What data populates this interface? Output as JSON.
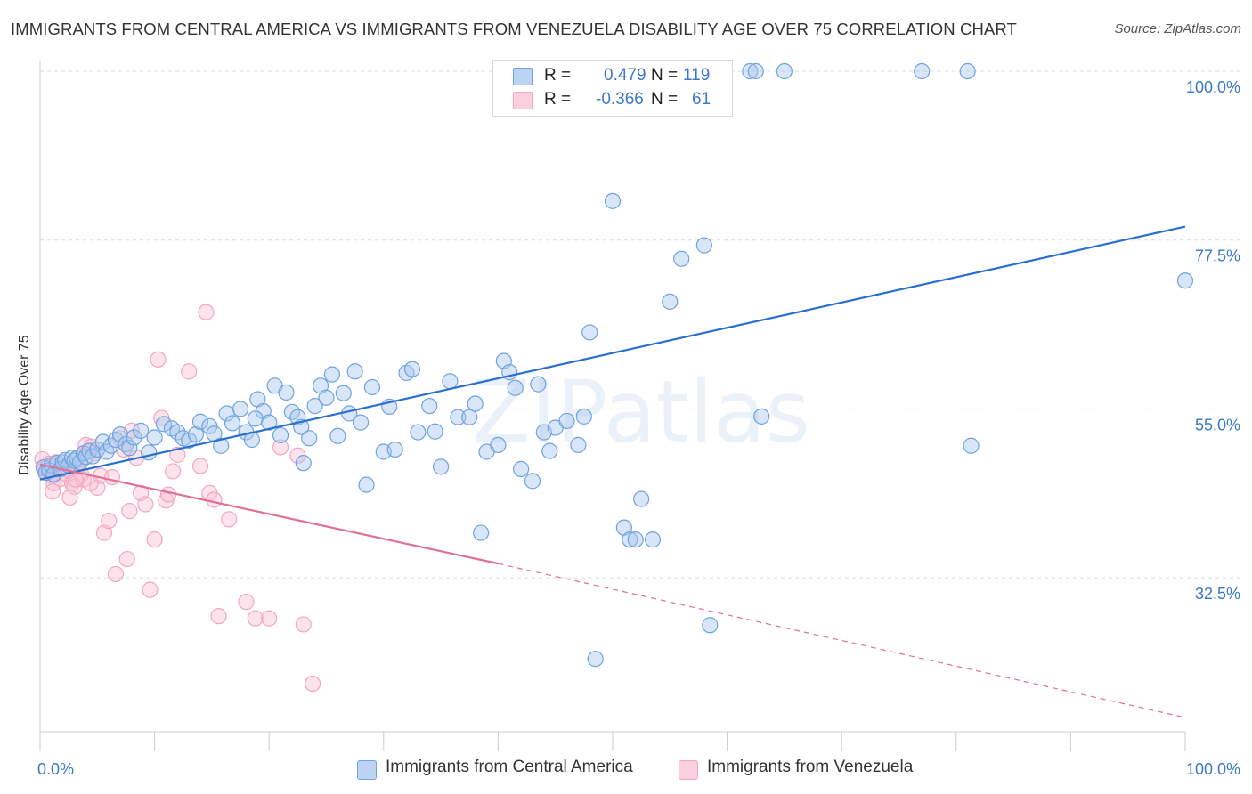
{
  "title": "IMMIGRANTS FROM CENTRAL AMERICA VS IMMIGRANTS FROM VENEZUELA DISABILITY AGE OVER 75 CORRELATION CHART",
  "source": "Source: ZipAtlas.com",
  "watermark": "ZIPatlas",
  "legend": {
    "r_label": "R =",
    "n_label": "N =",
    "rows": [
      {
        "r": "0.479",
        "n": "119"
      },
      {
        "r": "-0.366",
        "n": "61"
      }
    ]
  },
  "chart_data": {
    "type": "scatter",
    "title": "IMMIGRANTS FROM CENTRAL AMERICA VS IMMIGRANTS FROM VENEZUELA DISABILITY AGE OVER 75 CORRELATION CHART",
    "xlabel": "",
    "ylabel": "Disability Age Over 75",
    "xlim": [
      0,
      100
    ],
    "ylim": [
      12,
      100
    ],
    "x_tick_labels": [
      "0.0%",
      "100.0%"
    ],
    "y_ticks": [
      32.5,
      55.0,
      77.5,
      100.0
    ],
    "y_tick_labels": [
      "32.5%",
      "55.0%",
      "77.5%",
      "100.0%"
    ],
    "grid": true,
    "legend_position": "top-center",
    "colors": {
      "central_america": "#6fa3e0",
      "venezuela": "#f4a6c0",
      "blue_line": "#2a6fcf",
      "pink_line": "#e07098"
    },
    "series": [
      {
        "name": "Immigrants from Central America",
        "color": "#6fa3e0",
        "trendline": {
          "x": [
            0,
            100
          ],
          "y": [
            45.6,
            79.3
          ]
        },
        "points": [
          [
            0.3,
            47.2
          ],
          [
            0.5,
            46.5
          ],
          [
            0.8,
            46.8
          ],
          [
            1.0,
            47.5
          ],
          [
            1.2,
            46.3
          ],
          [
            1.5,
            47.8
          ],
          [
            1.8,
            47.0
          ],
          [
            2.0,
            47.9
          ],
          [
            2.2,
            48.2
          ],
          [
            2.5,
            47.5
          ],
          [
            2.8,
            48.5
          ],
          [
            3.0,
            48.1
          ],
          [
            3.2,
            48.4
          ],
          [
            3.5,
            47.9
          ],
          [
            3.8,
            49.1
          ],
          [
            4.0,
            48.6
          ],
          [
            4.3,
            49.4
          ],
          [
            4.6,
            48.7
          ],
          [
            5.0,
            49.6
          ],
          [
            5.5,
            50.6
          ],
          [
            5.8,
            49.3
          ],
          [
            6.2,
            50.1
          ],
          [
            6.6,
            50.9
          ],
          [
            7.0,
            51.6
          ],
          [
            7.5,
            50.3
          ],
          [
            7.8,
            49.8
          ],
          [
            8.2,
            51.2
          ],
          [
            8.8,
            52.1
          ],
          [
            9.5,
            49.2
          ],
          [
            10.0,
            51.2
          ],
          [
            10.8,
            53.0
          ],
          [
            11.5,
            52.4
          ],
          [
            12.0,
            51.9
          ],
          [
            12.5,
            51.1
          ],
          [
            13.0,
            50.8
          ],
          [
            13.6,
            51.6
          ],
          [
            14.0,
            53.3
          ],
          [
            14.8,
            52.7
          ],
          [
            15.2,
            51.7
          ],
          [
            15.8,
            50.1
          ],
          [
            16.3,
            54.4
          ],
          [
            16.8,
            53.1
          ],
          [
            17.5,
            55.0
          ],
          [
            18.0,
            51.9
          ],
          [
            18.5,
            50.9
          ],
          [
            19.0,
            56.3
          ],
          [
            19.5,
            54.7
          ],
          [
            20.0,
            53.2
          ],
          [
            20.5,
            58.1
          ],
          [
            21.0,
            51.5
          ],
          [
            21.5,
            57.2
          ],
          [
            22.0,
            54.6
          ],
          [
            22.5,
            53.9
          ],
          [
            23.0,
            47.8
          ],
          [
            23.5,
            51.1
          ],
          [
            24.0,
            55.4
          ],
          [
            24.5,
            58.1
          ],
          [
            25.0,
            56.5
          ],
          [
            25.5,
            59.6
          ],
          [
            26.5,
            57.1
          ],
          [
            27.0,
            54.4
          ],
          [
            27.5,
            60.0
          ],
          [
            28.0,
            53.2
          ],
          [
            29.0,
            57.9
          ],
          [
            30.0,
            49.3
          ],
          [
            30.5,
            55.3
          ],
          [
            31.0,
            49.6
          ],
          [
            32.0,
            59.8
          ],
          [
            32.5,
            60.3
          ],
          [
            33.0,
            51.9
          ],
          [
            34.0,
            55.4
          ],
          [
            34.5,
            52.0
          ],
          [
            35.0,
            47.3
          ],
          [
            35.8,
            58.7
          ],
          [
            36.5,
            53.9
          ],
          [
            37.5,
            53.9
          ],
          [
            38.0,
            55.7
          ],
          [
            39.0,
            49.3
          ],
          [
            40.0,
            50.2
          ],
          [
            40.5,
            61.4
          ],
          [
            41.0,
            59.9
          ],
          [
            41.5,
            57.8
          ],
          [
            42.0,
            47.0
          ],
          [
            43.0,
            45.4
          ],
          [
            43.5,
            58.3
          ],
          [
            44.0,
            51.9
          ],
          [
            44.5,
            49.4
          ],
          [
            45.0,
            52.5
          ],
          [
            46.0,
            53.4
          ],
          [
            47.0,
            50.2
          ],
          [
            47.5,
            54.0
          ],
          [
            48.0,
            65.2
          ],
          [
            50.0,
            82.7
          ],
          [
            51.0,
            39.2
          ],
          [
            51.5,
            37.6
          ],
          [
            52.0,
            37.6
          ],
          [
            52.5,
            43.0
          ],
          [
            53.5,
            37.6
          ],
          [
            55.0,
            69.3
          ],
          [
            56.0,
            75.0
          ],
          [
            58.0,
            76.8
          ],
          [
            58.5,
            26.2
          ],
          [
            59.0,
            100.0
          ],
          [
            59.5,
            100.0
          ],
          [
            62.0,
            100.0
          ],
          [
            62.5,
            100.0
          ],
          [
            63.0,
            54.0
          ],
          [
            65.0,
            100.0
          ],
          [
            77.0,
            100.0
          ],
          [
            81.0,
            100.0
          ],
          [
            81.3,
            50.1
          ],
          [
            100.0,
            72.1
          ],
          [
            48.5,
            21.7
          ],
          [
            38.5,
            38.5
          ],
          [
            28.5,
            44.9
          ],
          [
            26.0,
            51.4
          ],
          [
            22.8,
            52.6
          ],
          [
            18.8,
            53.7
          ]
        ]
      },
      {
        "name": "Immigrants from Venezuela",
        "color": "#f4a6c0",
        "trendline": {
          "x": [
            0,
            40
          ],
          "y": [
            47.6,
            34.4
          ]
        },
        "trendline_extension": {
          "x": [
            40,
            100
          ],
          "y": [
            34.4,
            13.9
          ]
        },
        "points": [
          [
            0.2,
            48.3
          ],
          [
            0.4,
            47.0
          ],
          [
            0.6,
            46.5
          ],
          [
            0.8,
            47.7
          ],
          [
            1.0,
            46.1
          ],
          [
            1.2,
            45.1
          ],
          [
            1.4,
            47.9
          ],
          [
            1.6,
            46.9
          ],
          [
            1.8,
            45.7
          ],
          [
            2.0,
            47.3
          ],
          [
            2.2,
            46.4
          ],
          [
            2.5,
            46.8
          ],
          [
            2.8,
            45.1
          ],
          [
            3.0,
            44.6
          ],
          [
            3.3,
            47.2
          ],
          [
            3.6,
            46.3
          ],
          [
            3.8,
            45.6
          ],
          [
            4.0,
            50.2
          ],
          [
            4.2,
            49.4
          ],
          [
            4.5,
            50.0
          ],
          [
            4.8,
            49.1
          ],
          [
            5.0,
            44.5
          ],
          [
            5.3,
            46.1
          ],
          [
            5.6,
            38.5
          ],
          [
            6.0,
            40.1
          ],
          [
            6.3,
            45.9
          ],
          [
            6.6,
            33.0
          ],
          [
            7.0,
            51.1
          ],
          [
            7.3,
            49.6
          ],
          [
            7.6,
            35.0
          ],
          [
            8.0,
            52.1
          ],
          [
            8.4,
            48.5
          ],
          [
            8.8,
            43.8
          ],
          [
            9.2,
            42.3
          ],
          [
            9.6,
            30.9
          ],
          [
            10.0,
            37.6
          ],
          [
            10.3,
            61.6
          ],
          [
            10.6,
            53.8
          ],
          [
            11.0,
            42.8
          ],
          [
            11.2,
            43.6
          ],
          [
            11.6,
            46.7
          ],
          [
            12.0,
            48.9
          ],
          [
            13.0,
            60.0
          ],
          [
            14.0,
            47.4
          ],
          [
            14.5,
            67.9
          ],
          [
            14.8,
            43.8
          ],
          [
            15.2,
            42.9
          ],
          [
            15.6,
            27.4
          ],
          [
            16.5,
            40.3
          ],
          [
            18.0,
            29.3
          ],
          [
            18.8,
            27.1
          ],
          [
            20.0,
            27.1
          ],
          [
            21.0,
            49.9
          ],
          [
            22.5,
            48.8
          ],
          [
            23.0,
            26.3
          ],
          [
            23.8,
            18.4
          ],
          [
            4.4,
            45.1
          ],
          [
            2.6,
            43.2
          ],
          [
            1.1,
            44.0
          ],
          [
            3.1,
            45.6
          ],
          [
            7.8,
            41.4
          ]
        ]
      }
    ]
  },
  "bottom_legend": [
    "Immigrants from Central America",
    "Immigrants from Venezuela"
  ]
}
